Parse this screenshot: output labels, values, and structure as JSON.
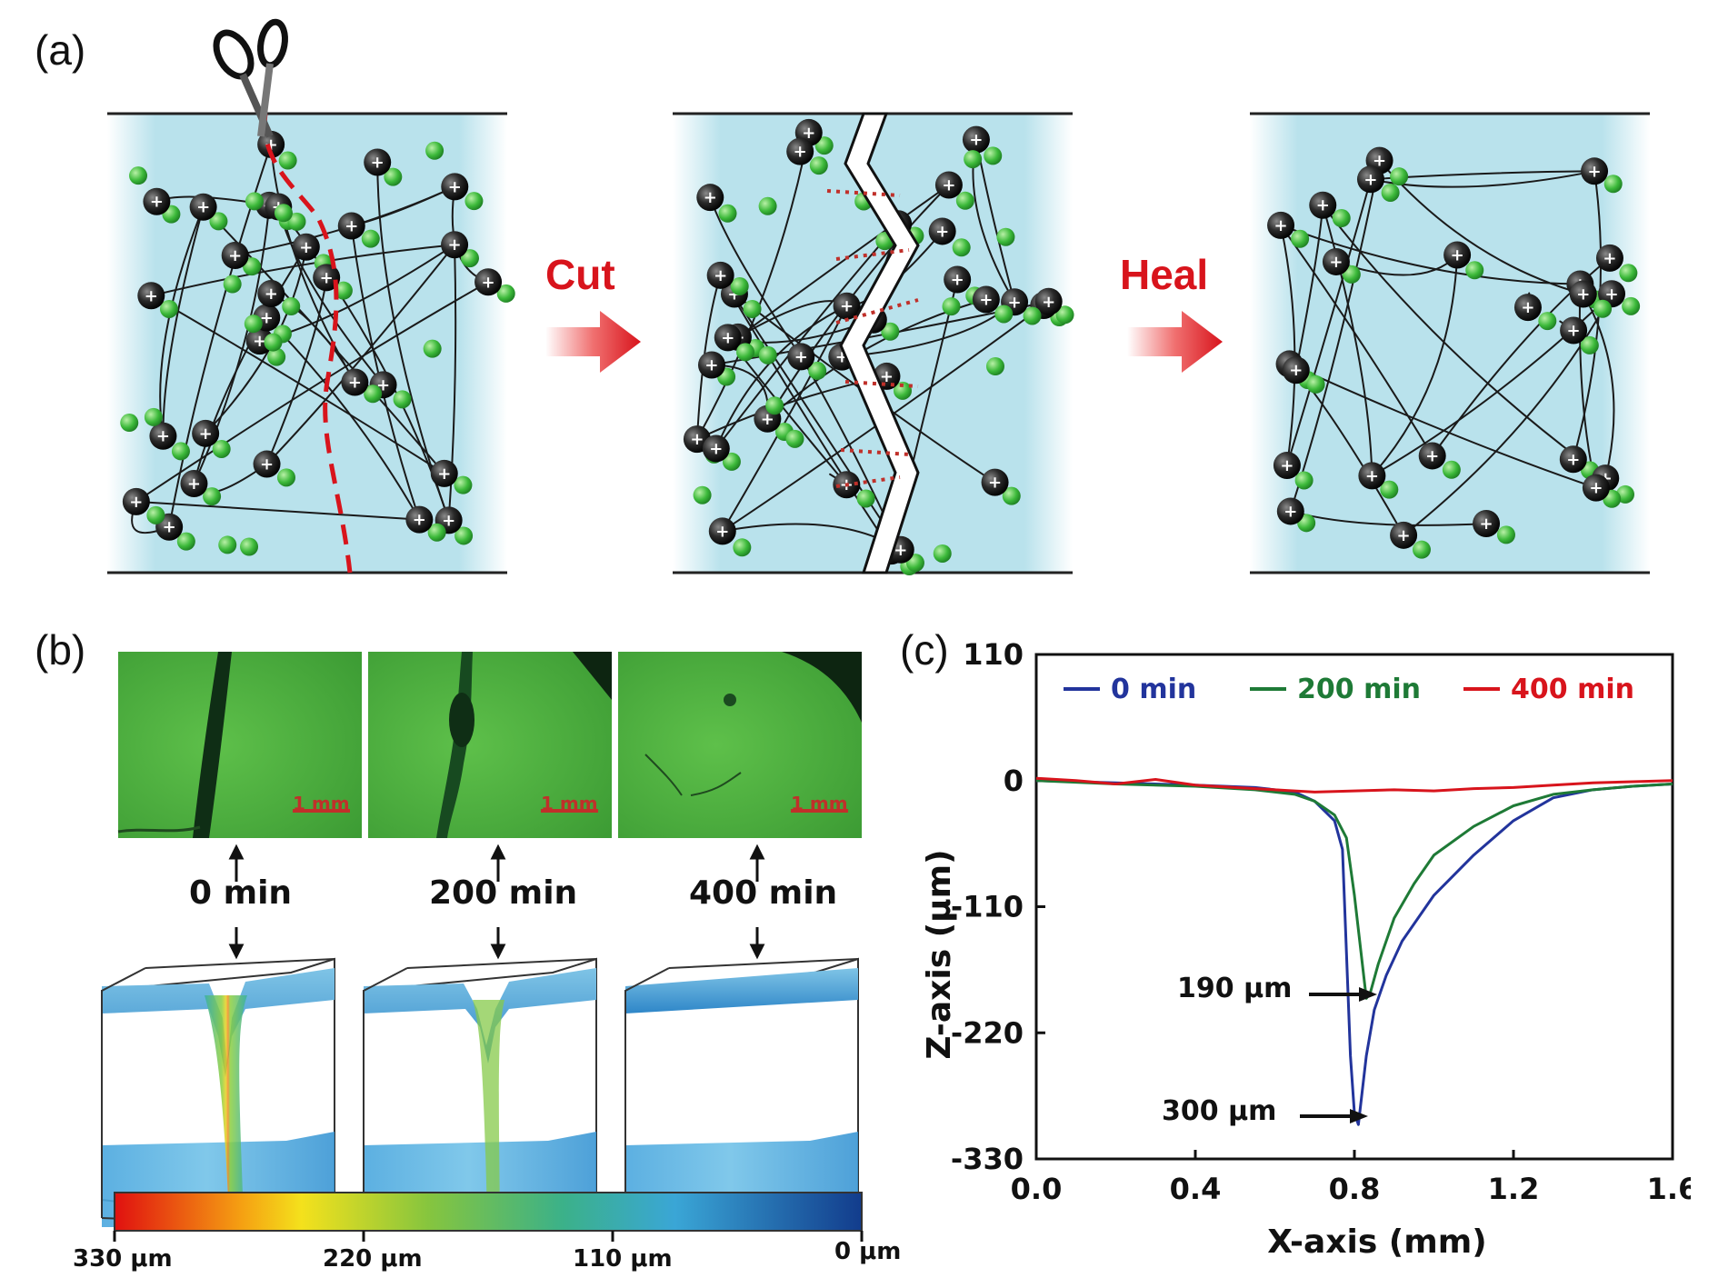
{
  "panel_a": {
    "label": "(a)",
    "arrow1": "Cut",
    "arrow2": "Heal",
    "ion_sign": "+",
    "colors": {
      "matrix": "#b9e2ec",
      "cut_line": "#d8141c",
      "anion": "#3cb93a",
      "cation": "#1a1a1a"
    }
  },
  "panel_b": {
    "label": "(b)",
    "times": [
      "0 min",
      "200 min",
      "400 min"
    ],
    "scale_bar": "1 mm",
    "colorbar_ticks": [
      "330 μm",
      "220 μm",
      "110 μm",
      "0 μm"
    ]
  },
  "panel_c": {
    "label": "(c)",
    "annotations": [
      "190 μm",
      "300 μm"
    ]
  },
  "chart_data": {
    "type": "line",
    "xlabel": "X-axis (mm)",
    "ylabel": "Z-axis (μm)",
    "xlim": [
      0.0,
      1.6
    ],
    "ylim": [
      -330,
      110
    ],
    "xticks": [
      "0.0",
      "0.4",
      "0.8",
      "1.2",
      "1.6"
    ],
    "yticks": [
      "110",
      "0",
      "-110",
      "-220",
      "-330"
    ],
    "legend_position": "top",
    "series": [
      {
        "name": "0 min",
        "color": "#22349c",
        "x": [
          0.0,
          0.2,
          0.4,
          0.55,
          0.65,
          0.7,
          0.75,
          0.77,
          0.78,
          0.79,
          0.8,
          0.81,
          0.82,
          0.83,
          0.85,
          0.88,
          0.92,
          1.0,
          1.1,
          1.2,
          1.3,
          1.4,
          1.5,
          1.6
        ],
        "y": [
          0,
          -2,
          -4,
          -6,
          -10,
          -18,
          -35,
          -60,
          -150,
          -240,
          -290,
          -300,
          -270,
          -240,
          -200,
          -170,
          -140,
          -100,
          -65,
          -35,
          -15,
          -8,
          -5,
          -3
        ]
      },
      {
        "name": "200 min",
        "color": "#1e7a36",
        "x": [
          0.0,
          0.2,
          0.4,
          0.55,
          0.65,
          0.7,
          0.75,
          0.78,
          0.8,
          0.82,
          0.83,
          0.84,
          0.86,
          0.9,
          0.95,
          1.0,
          1.1,
          1.2,
          1.3,
          1.4,
          1.5,
          1.6
        ],
        "y": [
          0,
          -3,
          -5,
          -8,
          -12,
          -18,
          -30,
          -50,
          -100,
          -160,
          -190,
          -185,
          -160,
          -120,
          -90,
          -65,
          -40,
          -22,
          -12,
          -8,
          -5,
          -3
        ]
      },
      {
        "name": "400 min",
        "color": "#d8141c",
        "x": [
          0.0,
          0.1,
          0.2,
          0.3,
          0.4,
          0.5,
          0.6,
          0.7,
          0.8,
          0.9,
          1.0,
          1.1,
          1.2,
          1.3,
          1.4,
          1.5,
          1.6
        ],
        "y": [
          2,
          0,
          -3,
          1,
          -4,
          -6,
          -8,
          -10,
          -9,
          -8,
          -9,
          -7,
          -6,
          -4,
          -2,
          -1,
          0
        ]
      }
    ]
  }
}
